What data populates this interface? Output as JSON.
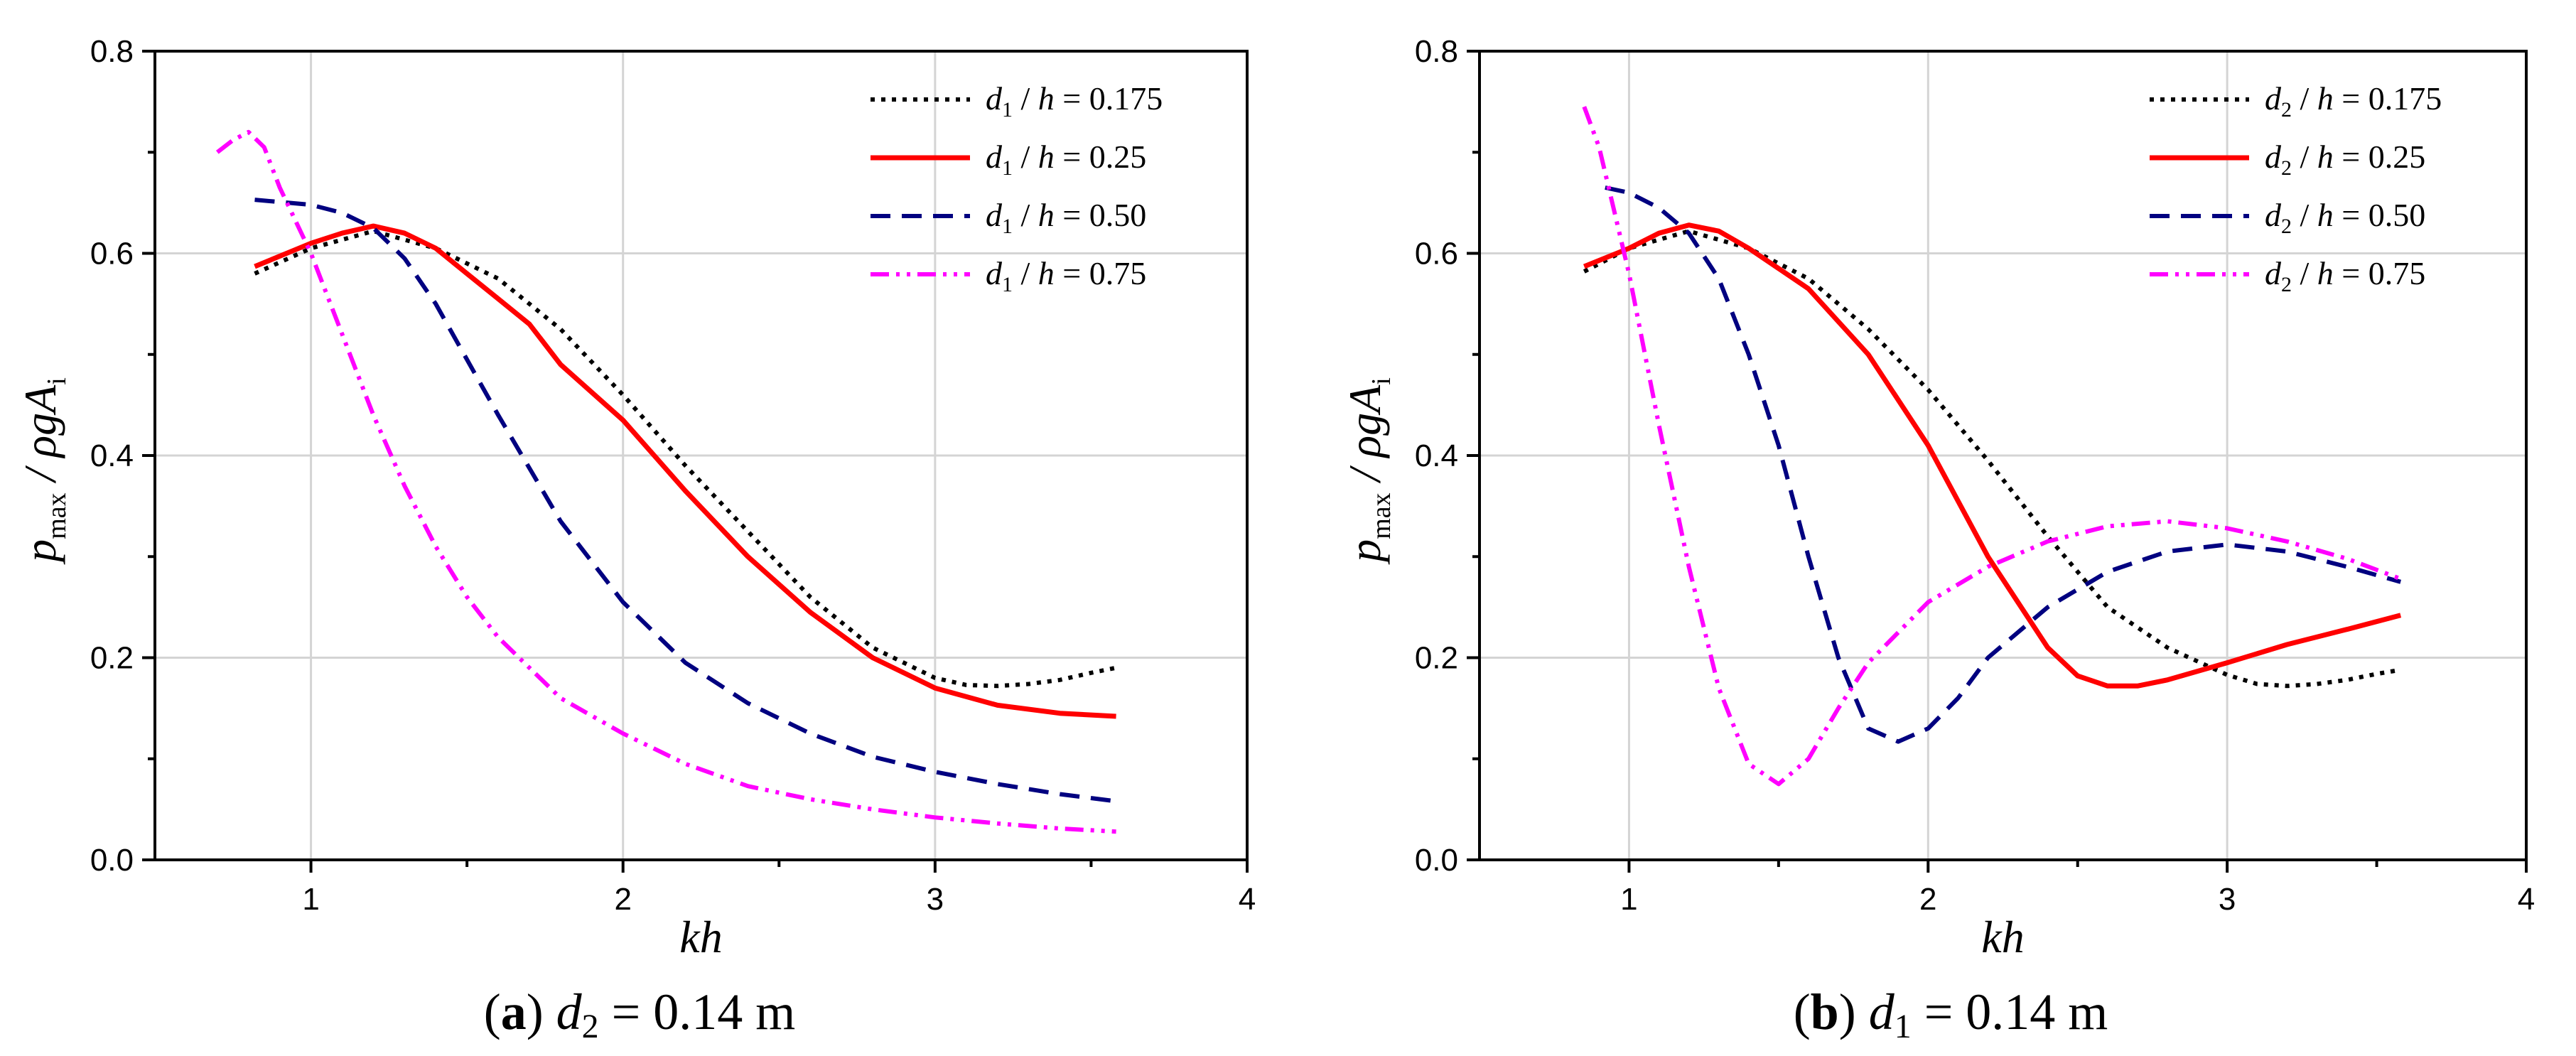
{
  "chart_data": [
    {
      "type": "line",
      "caption_letter": "(a)",
      "caption_var": "d",
      "caption_sub": "2",
      "caption_rest": " = 0.14 m",
      "xlabel": "kh",
      "ylabel_p": "p",
      "ylabel_max": "max",
      "ylabel_rest": " / ρgA",
      "ylabel_sub": "i",
      "xlim": [
        0.5,
        4
      ],
      "ylim": [
        0,
        0.8
      ],
      "xticks": [
        "1",
        "2",
        "3",
        "4"
      ],
      "yticks": [
        "0.0",
        "0.2",
        "0.4",
        "0.6",
        "0.8"
      ],
      "grid": true,
      "legend_position": "top-right",
      "series": [
        {
          "legend_var": "d",
          "legend_sub": "1",
          "legend_rest": " / ",
          "legend_h": "h",
          "legend_val": " = 0.175",
          "color": "#000000",
          "dash": "dotted",
          "x": [
            0.82,
            1.0,
            1.2,
            1.4,
            1.6,
            1.8,
            2.0,
            2.2,
            2.4,
            2.6,
            2.8,
            3.0,
            3.1,
            3.2,
            3.3,
            3.4,
            3.5,
            3.58
          ],
          "y": [
            0.58,
            0.605,
            0.622,
            0.605,
            0.575,
            0.525,
            0.46,
            0.39,
            0.325,
            0.26,
            0.21,
            0.18,
            0.173,
            0.172,
            0.174,
            0.178,
            0.185,
            0.19
          ]
        },
        {
          "legend_var": "d",
          "legend_sub": "1",
          "legend_rest": " / ",
          "legend_h": "h",
          "legend_val": " = 0.25",
          "color": "#ff0000",
          "dash": "solid",
          "x": [
            0.82,
            1.0,
            1.1,
            1.2,
            1.3,
            1.4,
            1.5,
            1.6,
            1.7,
            1.8,
            2.0,
            2.2,
            2.4,
            2.6,
            2.8,
            3.0,
            3.2,
            3.4,
            3.58
          ],
          "y": [
            0.587,
            0.61,
            0.62,
            0.627,
            0.62,
            0.605,
            0.58,
            0.555,
            0.53,
            0.49,
            0.435,
            0.365,
            0.3,
            0.245,
            0.2,
            0.17,
            0.153,
            0.145,
            0.142
          ]
        },
        {
          "legend_var": "d",
          "legend_sub": "1",
          "legend_rest": " / ",
          "legend_h": "h",
          "legend_val": " = 0.50",
          "color": "#000080",
          "dash": "dashed",
          "x": [
            0.82,
            1.0,
            1.1,
            1.2,
            1.3,
            1.4,
            1.5,
            1.6,
            1.8,
            2.0,
            2.2,
            2.4,
            2.6,
            2.8,
            3.0,
            3.2,
            3.4,
            3.58
          ],
          "y": [
            0.653,
            0.648,
            0.64,
            0.625,
            0.595,
            0.55,
            0.495,
            0.44,
            0.335,
            0.255,
            0.195,
            0.155,
            0.125,
            0.102,
            0.087,
            0.075,
            0.065,
            0.058
          ]
        },
        {
          "legend_var": "d",
          "legend_sub": "1",
          "legend_rest": " / ",
          "legend_h": "h",
          "legend_val": " = 0.75",
          "color": "#ff00ff",
          "dash": "dashdotdot",
          "x": [
            0.7,
            0.75,
            0.8,
            0.85,
            0.9,
            1.0,
            1.1,
            1.2,
            1.3,
            1.4,
            1.5,
            1.6,
            1.8,
            2.0,
            2.2,
            2.4,
            2.6,
            2.8,
            3.0,
            3.2,
            3.4,
            3.58
          ],
          "y": [
            0.7,
            0.712,
            0.72,
            0.705,
            0.665,
            0.6,
            0.52,
            0.44,
            0.37,
            0.31,
            0.26,
            0.22,
            0.16,
            0.125,
            0.095,
            0.073,
            0.06,
            0.05,
            0.042,
            0.036,
            0.031,
            0.028
          ]
        }
      ]
    },
    {
      "type": "line",
      "caption_letter": "(b)",
      "caption_var": "d",
      "caption_sub": "1",
      "caption_rest": " = 0.14 m",
      "xlabel": "kh",
      "ylabel_p": "p",
      "ylabel_max": "max",
      "ylabel_rest": " / ρgA",
      "ylabel_sub": "i",
      "xlim": [
        0.5,
        4
      ],
      "ylim": [
        0,
        0.8
      ],
      "xticks": [
        "1",
        "2",
        "3",
        "4"
      ],
      "yticks": [
        "0.0",
        "0.2",
        "0.4",
        "0.6",
        "0.8"
      ],
      "grid": true,
      "legend_position": "top-right",
      "series": [
        {
          "legend_var": "d",
          "legend_sub": "2",
          "legend_rest": " / ",
          "legend_h": "h",
          "legend_val": " = 0.175",
          "color": "#000000",
          "dash": "dotted",
          "x": [
            0.85,
            1.0,
            1.2,
            1.4,
            1.6,
            1.8,
            2.0,
            2.2,
            2.4,
            2.6,
            2.8,
            3.0,
            3.1,
            3.2,
            3.3,
            3.4,
            3.5,
            3.58
          ],
          "y": [
            0.582,
            0.605,
            0.622,
            0.605,
            0.575,
            0.525,
            0.465,
            0.395,
            0.32,
            0.25,
            0.21,
            0.183,
            0.174,
            0.172,
            0.174,
            0.178,
            0.184,
            0.188
          ]
        },
        {
          "legend_var": "d",
          "legend_sub": "2",
          "legend_rest": " / ",
          "legend_h": "h",
          "legend_val": " = 0.25",
          "color": "#ff0000",
          "dash": "solid",
          "x": [
            0.85,
            1.0,
            1.1,
            1.2,
            1.3,
            1.4,
            1.5,
            1.6,
            1.8,
            2.0,
            2.2,
            2.4,
            2.5,
            2.6,
            2.7,
            2.8,
            3.0,
            3.2,
            3.4,
            3.58
          ],
          "y": [
            0.587,
            0.605,
            0.62,
            0.628,
            0.622,
            0.605,
            0.585,
            0.565,
            0.5,
            0.41,
            0.3,
            0.21,
            0.182,
            0.172,
            0.172,
            0.178,
            0.195,
            0.213,
            0.228,
            0.242
          ]
        },
        {
          "legend_var": "d",
          "legend_sub": "2",
          "legend_rest": " / ",
          "legend_h": "h",
          "legend_val": " = 0.50",
          "color": "#000080",
          "dash": "dashed",
          "x": [
            0.92,
            1.0,
            1.1,
            1.2,
            1.3,
            1.4,
            1.5,
            1.6,
            1.7,
            1.8,
            1.9,
            2.0,
            2.1,
            2.2,
            2.4,
            2.6,
            2.8,
            3.0,
            3.2,
            3.4,
            3.58
          ],
          "y": [
            0.665,
            0.66,
            0.645,
            0.62,
            0.575,
            0.5,
            0.41,
            0.3,
            0.2,
            0.13,
            0.117,
            0.13,
            0.16,
            0.2,
            0.25,
            0.285,
            0.305,
            0.312,
            0.305,
            0.29,
            0.275
          ]
        },
        {
          "legend_var": "d",
          "legend_sub": "2",
          "legend_rest": " / ",
          "legend_h": "h",
          "legend_val": " = 0.75",
          "color": "#ff00ff",
          "dash": "dashdotdot",
          "x": [
            0.85,
            0.9,
            1.0,
            1.1,
            1.2,
            1.3,
            1.4,
            1.5,
            1.6,
            1.7,
            1.8,
            2.0,
            2.2,
            2.4,
            2.6,
            2.8,
            3.0,
            3.2,
            3.4,
            3.58
          ],
          "y": [
            0.745,
            0.705,
            0.58,
            0.43,
            0.29,
            0.17,
            0.095,
            0.075,
            0.1,
            0.15,
            0.195,
            0.255,
            0.29,
            0.315,
            0.33,
            0.335,
            0.328,
            0.315,
            0.298,
            0.278
          ]
        }
      ]
    }
  ]
}
